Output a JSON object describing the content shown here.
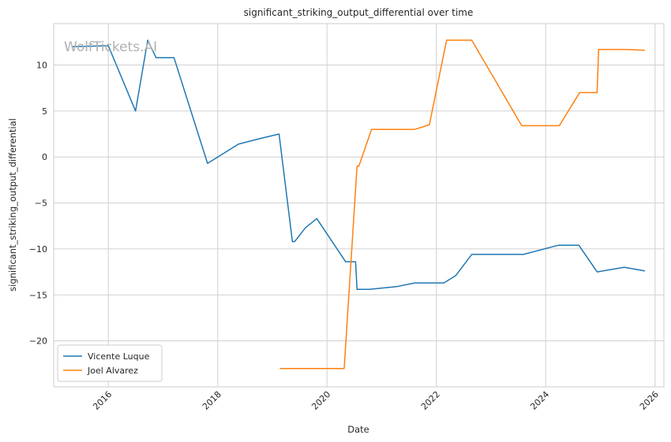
{
  "watermark": "WolfTickets.AI",
  "chart_data": {
    "type": "line",
    "title": "significant_striking_output_differential over time",
    "xlabel": "Date",
    "ylabel": "significant_striking_output_differential",
    "xlim": [
      "2015-01-01",
      "2026-03-01"
    ],
    "ylim": [
      -25,
      14.5
    ],
    "xticks": [
      "2016",
      "2018",
      "2020",
      "2022",
      "2024",
      "2026"
    ],
    "yticks": [
      10,
      5,
      0,
      -5,
      -10,
      -15,
      -20
    ],
    "grid": true,
    "legend_position": "lower-left",
    "colors": {
      "Vicente Luque": "#1f77b4",
      "Joel Alvarez": "#ff7f0e"
    },
    "series": [
      {
        "name": "Vicente Luque",
        "color": "#1f77b4",
        "points": [
          [
            "2015-05-01",
            12.0
          ],
          [
            "2016-01-01",
            12.1
          ],
          [
            "2016-07-01",
            5.0
          ],
          [
            "2016-09-20",
            12.7
          ],
          [
            "2016-11-15",
            10.8
          ],
          [
            "2017-03-15",
            10.8
          ],
          [
            "2017-10-25",
            -0.7
          ],
          [
            "2018-05-20",
            1.4
          ],
          [
            "2018-10-10",
            2.0
          ],
          [
            "2019-02-15",
            2.5
          ],
          [
            "2019-05-15",
            -9.2
          ],
          [
            "2019-05-30",
            -9.2
          ],
          [
            "2019-08-10",
            -7.7
          ],
          [
            "2019-10-25",
            -6.7
          ],
          [
            "2020-05-05",
            -11.4
          ],
          [
            "2020-07-10",
            -11.4
          ],
          [
            "2020-07-20",
            -14.4
          ],
          [
            "2020-10-10",
            -14.4
          ],
          [
            "2021-04-10",
            -14.1
          ],
          [
            "2021-08-10",
            -13.7
          ],
          [
            "2022-02-20",
            -13.7
          ],
          [
            "2022-05-10",
            -12.9
          ],
          [
            "2022-08-25",
            -10.6
          ],
          [
            "2023-08-05",
            -10.6
          ],
          [
            "2024-03-25",
            -9.6
          ],
          [
            "2024-08-10",
            -9.6
          ],
          [
            "2024-12-10",
            -12.5
          ],
          [
            "2025-06-10",
            -12.0
          ],
          [
            "2025-10-25",
            -12.4
          ]
        ]
      },
      {
        "name": "Joel Alvarez",
        "color": "#ff7f0e",
        "points": [
          [
            "2019-02-20",
            -23.0
          ],
          [
            "2020-04-25",
            -23.0
          ],
          [
            "2020-07-20",
            -1.0
          ],
          [
            "2020-08-01",
            -1.0
          ],
          [
            "2020-10-25",
            3.0
          ],
          [
            "2021-08-10",
            3.0
          ],
          [
            "2021-11-15",
            3.5
          ],
          [
            "2022-03-10",
            12.7
          ],
          [
            "2022-08-25",
            12.7
          ],
          [
            "2023-07-25",
            3.4
          ],
          [
            "2024-04-01",
            3.4
          ],
          [
            "2024-08-15",
            7.0
          ],
          [
            "2024-12-10",
            7.0
          ],
          [
            "2024-12-20",
            11.7
          ],
          [
            "2025-06-10",
            11.7
          ],
          [
            "2025-10-25",
            11.6
          ]
        ]
      }
    ]
  }
}
